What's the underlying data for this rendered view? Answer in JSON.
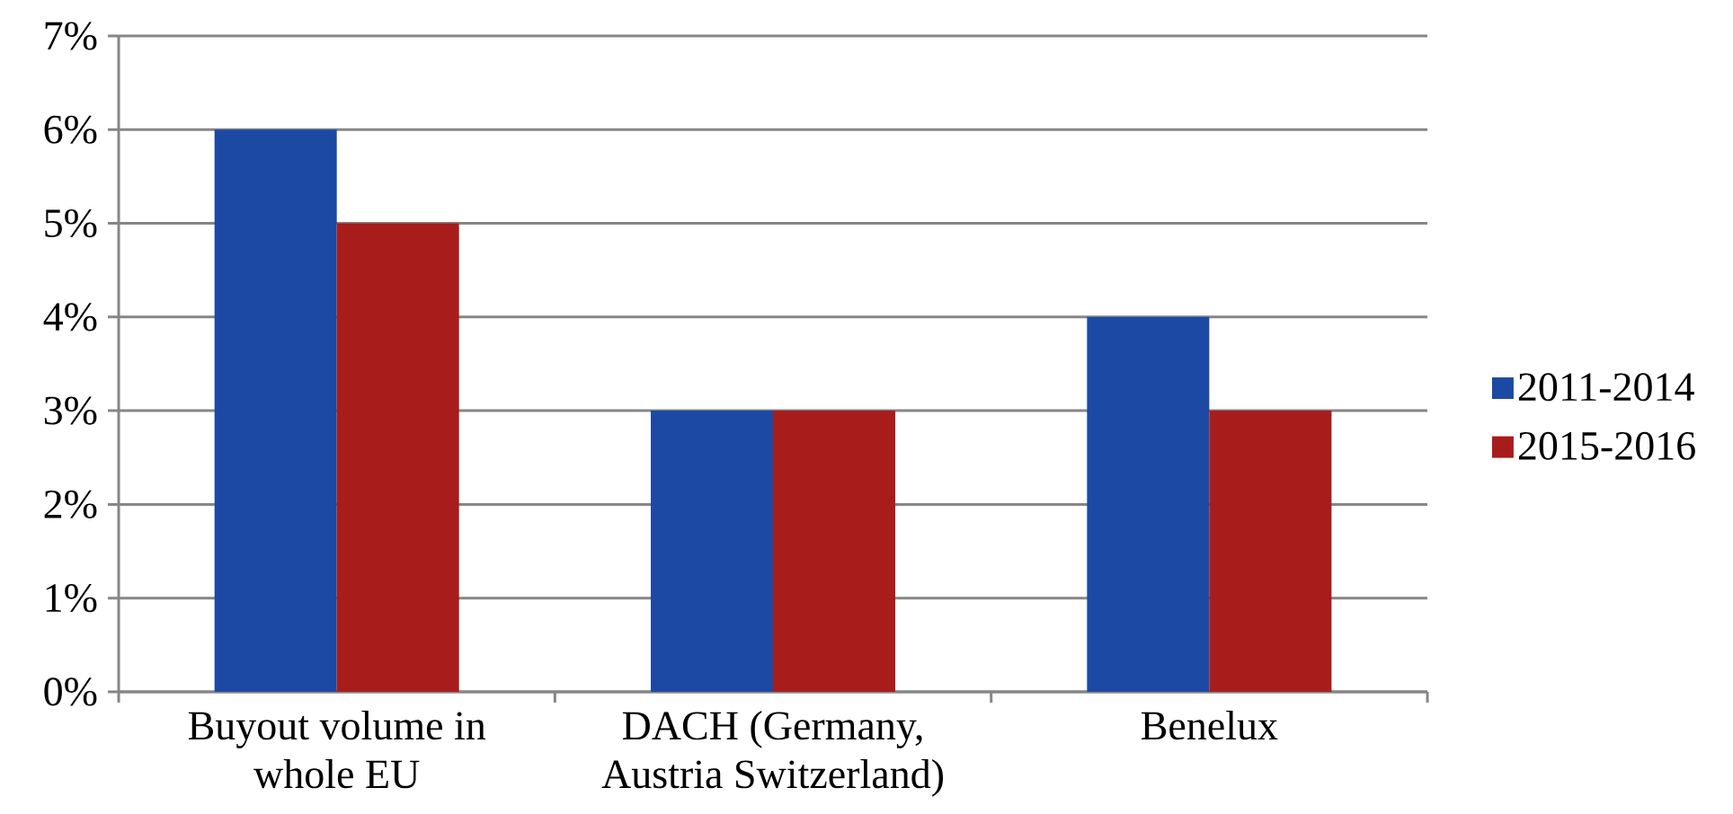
{
  "chart_data": {
    "type": "bar",
    "categories": [
      "Buyout volume in whole EU",
      "DACH (Germany, Austria Switzerland)",
      "Benelux"
    ],
    "series": [
      {
        "name": "2011-2014",
        "color": "#1c49a3",
        "values": [
          6,
          3,
          4
        ]
      },
      {
        "name": "2015-2016",
        "color": "#a81c1c",
        "values": [
          5,
          3,
          3
        ]
      }
    ],
    "ylim": [
      0,
      7
    ],
    "yticks": [
      {
        "value": 0,
        "label": "0%"
      },
      {
        "value": 1,
        "label": "1%"
      },
      {
        "value": 2,
        "label": "2%"
      },
      {
        "value": 3,
        "label": "3%"
      },
      {
        "value": 4,
        "label": "4%"
      },
      {
        "value": 5,
        "label": "5%"
      },
      {
        "value": 6,
        "label": "6%"
      },
      {
        "value": 7,
        "label": "7%"
      }
    ],
    "grid": "y",
    "legend": "right"
  }
}
